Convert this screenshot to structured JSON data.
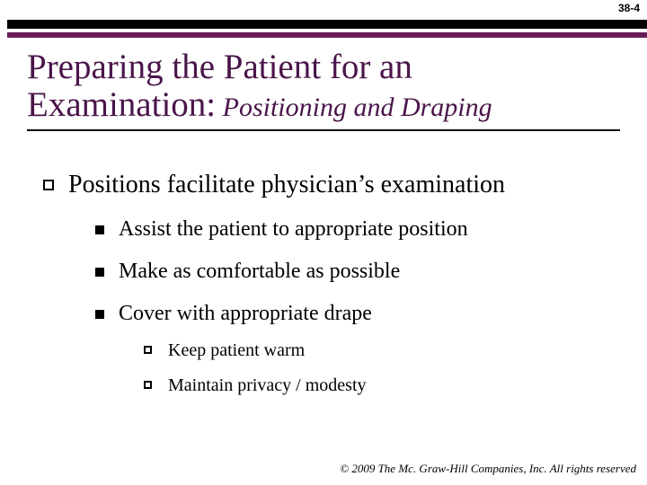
{
  "page_number": "38-4",
  "colors": {
    "bar_dark": "#000000",
    "bar_accent": "#671c57",
    "title": "#4a154a",
    "body_text": "#000000",
    "background": "#ffffff"
  },
  "title": {
    "main_line1": "Preparing the Patient for an",
    "main_line2_lead": "Examination:",
    "subtitle": " Positioning and Draping",
    "main_fontsize": 39,
    "sub_fontsize": 30
  },
  "body": {
    "level1_fontsize": 28,
    "level2_fontsize": 24,
    "level3_fontsize": 20,
    "item": {
      "text": "Positions facilitate physician’s examination",
      "children": [
        {
          "text": "Assist the patient to appropriate position"
        },
        {
          "text": "Make as comfortable as possible"
        },
        {
          "text": "Cover with appropriate drape",
          "children": [
            {
              "text": "Keep patient warm"
            },
            {
              "text": "Maintain privacy / modesty"
            }
          ]
        }
      ]
    }
  },
  "footer": "© 2009 The Mc. Graw-Hill Companies, Inc. All rights reserved"
}
